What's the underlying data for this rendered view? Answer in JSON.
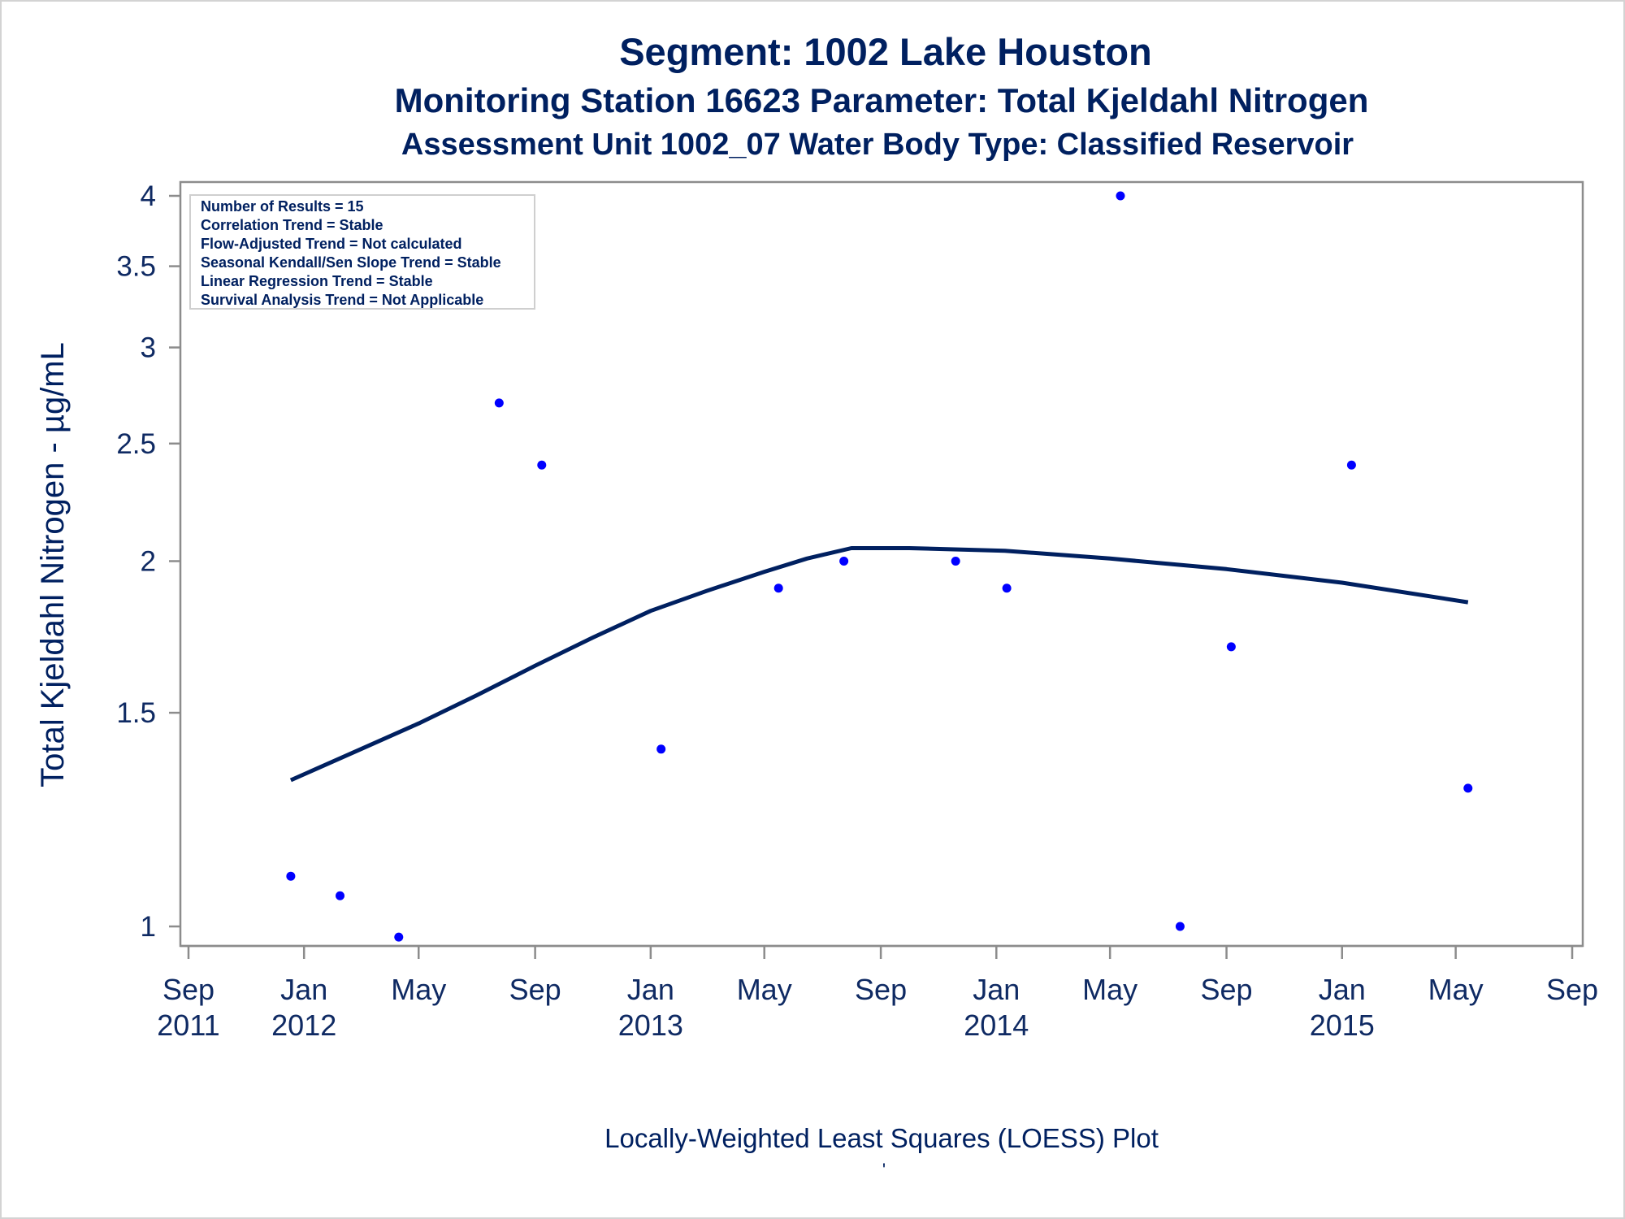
{
  "chart_data": {
    "type": "scatter",
    "title": "Segment: 1002  Lake Houston",
    "subtitle": "Monitoring Station 16623 Parameter: Total Kjeldahl Nitrogen",
    "subtitle2": "Assessment Unit 1002_07   Water Body Type: Classified Reservoir",
    "ylabel": "Total Kjeldahl Nitrogen -  µg/mL",
    "xlabel": "",
    "y_scale": "log",
    "ylim": [
      0.95,
      4.1
    ],
    "xlim": [
      "2011-09-01",
      "2015-09-01"
    ],
    "y_ticks": [
      1,
      1.5,
      2,
      2.5,
      3,
      3.5,
      4
    ],
    "y_tick_labels": [
      "1",
      "1.5",
      "2",
      "2.5",
      "3",
      "3.5",
      "4"
    ],
    "x_ticks": [
      {
        "date": "2011-09-01",
        "month": "Sep",
        "year": "2011"
      },
      {
        "date": "2012-01-01",
        "month": "Jan",
        "year": "2012"
      },
      {
        "date": "2012-05-01",
        "month": "May",
        "year": ""
      },
      {
        "date": "2012-09-01",
        "month": "Sep",
        "year": ""
      },
      {
        "date": "2013-01-01",
        "month": "Jan",
        "year": "2013"
      },
      {
        "date": "2013-05-01",
        "month": "May",
        "year": ""
      },
      {
        "date": "2013-09-01",
        "month": "Sep",
        "year": ""
      },
      {
        "date": "2014-01-01",
        "month": "Jan",
        "year": "2014"
      },
      {
        "date": "2014-05-01",
        "month": "May",
        "year": ""
      },
      {
        "date": "2014-09-01",
        "month": "Sep",
        "year": ""
      },
      {
        "date": "2015-01-01",
        "month": "Jan",
        "year": "2015"
      },
      {
        "date": "2015-05-01",
        "month": "May",
        "year": ""
      },
      {
        "date": "2015-09-01",
        "month": "Sep",
        "year": ""
      }
    ],
    "points": [
      {
        "x": "2011-12-18",
        "y": 1.1
      },
      {
        "x": "2012-02-08",
        "y": 1.06
      },
      {
        "x": "2012-04-10",
        "y": 0.98
      },
      {
        "x": "2012-07-25",
        "y": 2.7
      },
      {
        "x": "2012-09-08",
        "y": 2.4
      },
      {
        "x": "2013-01-12",
        "y": 1.4
      },
      {
        "x": "2013-05-16",
        "y": 1.9
      },
      {
        "x": "2013-07-24",
        "y": 2.0
      },
      {
        "x": "2013-11-19",
        "y": 2.0
      },
      {
        "x": "2014-01-12",
        "y": 1.9
      },
      {
        "x": "2014-05-12",
        "y": 4.0
      },
      {
        "x": "2014-07-14",
        "y": 1.0
      },
      {
        "x": "2014-09-06",
        "y": 1.7
      },
      {
        "x": "2015-01-11",
        "y": 2.4
      },
      {
        "x": "2015-05-14",
        "y": 1.3
      }
    ],
    "loess": [
      {
        "x": "2011-12-18",
        "y": 1.32
      },
      {
        "x": "2012-03-01",
        "y": 1.4
      },
      {
        "x": "2012-05-01",
        "y": 1.47
      },
      {
        "x": "2012-07-01",
        "y": 1.55
      },
      {
        "x": "2012-09-01",
        "y": 1.64
      },
      {
        "x": "2012-11-01",
        "y": 1.73
      },
      {
        "x": "2013-01-01",
        "y": 1.82
      },
      {
        "x": "2013-03-01",
        "y": 1.89
      },
      {
        "x": "2013-05-01",
        "y": 1.96
      },
      {
        "x": "2013-06-15",
        "y": 2.01
      },
      {
        "x": "2013-08-01",
        "y": 2.05
      },
      {
        "x": "2013-10-01",
        "y": 2.05
      },
      {
        "x": "2014-01-10",
        "y": 2.04
      },
      {
        "x": "2014-05-01",
        "y": 2.01
      },
      {
        "x": "2014-09-01",
        "y": 1.97
      },
      {
        "x": "2015-01-01",
        "y": 1.92
      },
      {
        "x": "2015-05-14",
        "y": 1.85
      }
    ],
    "legend_position": "top-left",
    "legend_lines": [
      "Number of Results = 15",
      "Correlation Trend = Stable",
      "Flow-Adjusted Trend = Not calculated",
      "Seasonal Kendall/Sen Slope Trend = Stable",
      "Linear Regression Trend = Stable",
      "Survival Analysis Trend = Not Applicable"
    ],
    "colors": {
      "points": "#0000ff",
      "line": "#002060",
      "text": "#002060",
      "axis": "#8c8c8c"
    }
  },
  "footer": {
    "caption": "Locally-Weighted Least Squares (LOESS) Plot",
    "mark": "'"
  }
}
